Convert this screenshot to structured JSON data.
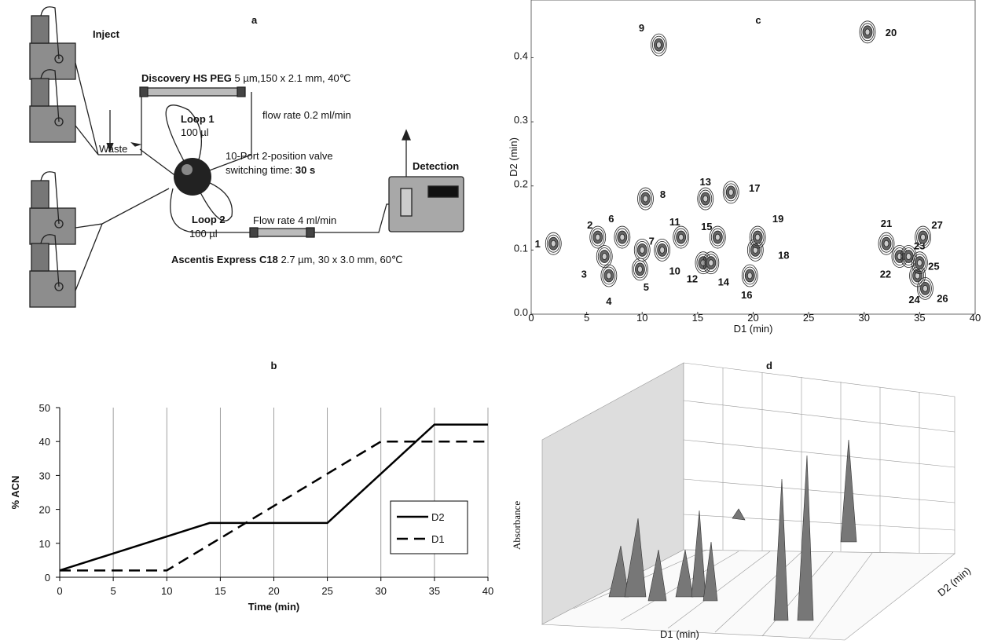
{
  "diagram": {
    "label": "a",
    "inject": "Inject",
    "column1": {
      "name": "Discovery HS PEG",
      "spec": "5 µm,150 x 2.1 mm, 40℃"
    },
    "flow1": "flow rate 0.2 ml/min",
    "loop1": {
      "name": "Loop 1",
      "volume": "100 µl"
    },
    "waste": "Waste",
    "valve": "10-Port 2-position valve",
    "switching": "switching time:",
    "switching_time": "30 s",
    "loop2": {
      "name": "Loop 2",
      "volume": "100 µl"
    },
    "flow2": "Flow rate 4 ml/min",
    "detection": "Detection",
    "column2": {
      "name": "Ascentis Express C18",
      "spec": "2.7 µm, 30 x 3.0 mm, 60℃"
    }
  },
  "chart_data": [
    {
      "type": "line",
      "title": "b",
      "x_label": "Time (min)",
      "y_label": "% ACN",
      "xlim": [
        0,
        40
      ],
      "xticks": [
        0,
        5,
        10,
        15,
        20,
        25,
        30,
        35,
        40
      ],
      "ylim": [
        0,
        50
      ],
      "yticks": [
        0,
        10,
        20,
        30,
        40,
        50
      ],
      "grid": "x",
      "series": [
        {
          "name": "D2",
          "color": "#000000",
          "line_style": "solid",
          "x": [
            0,
            14,
            25,
            35,
            40
          ],
          "values": [
            2,
            16,
            16,
            45,
            45
          ]
        },
        {
          "name": "D1",
          "color": "#000000",
          "line_style": "dashed",
          "x": [
            0,
            10,
            30,
            40
          ],
          "values": [
            2,
            2,
            40,
            40
          ]
        }
      ]
    },
    {
      "type": "scatter",
      "title": "c",
      "x_label": "D1 (min)",
      "y_label": "D2 (min)",
      "xlim": [
        0,
        40
      ],
      "xticks": [
        0,
        5,
        10,
        15,
        20,
        25,
        30,
        35,
        40
      ],
      "ylim": [
        0,
        0.49
      ],
      "yticks": [
        {
          "value": 0,
          "label": "0.0"
        },
        0.1,
        0.2,
        0.3,
        0.4
      ],
      "labels": [
        "1",
        "2",
        "3",
        "4",
        "5",
        "6",
        "7",
        "8",
        "9",
        "10",
        "11",
        "12",
        "13",
        "14",
        "15",
        "16",
        "17",
        "18",
        "19",
        "20",
        "21",
        "22",
        "23",
        "24",
        "25",
        "26",
        "27"
      ],
      "x": [
        2.0,
        6.0,
        6.6,
        7.0,
        9.8,
        8.2,
        10.0,
        10.3,
        11.5,
        11.8,
        13.5,
        15.5,
        15.7,
        16.2,
        16.8,
        19.7,
        18.0,
        20.2,
        20.4,
        30.3,
        32.0,
        33.2,
        34.0,
        34.8,
        35.0,
        35.5,
        35.3
      ],
      "values": [
        0.11,
        0.12,
        0.09,
        0.06,
        0.07,
        0.12,
        0.1,
        0.18,
        0.42,
        0.1,
        0.12,
        0.08,
        0.18,
        0.08,
        0.12,
        0.06,
        0.19,
        0.1,
        0.12,
        0.44,
        0.11,
        0.09,
        0.09,
        0.06,
        0.08,
        0.04,
        0.12
      ]
    }
  ],
  "surface_plot": {
    "label": "d",
    "z_label": "Absorbance",
    "x_label": "D1 (min)",
    "y_label": "D2 (min)"
  }
}
